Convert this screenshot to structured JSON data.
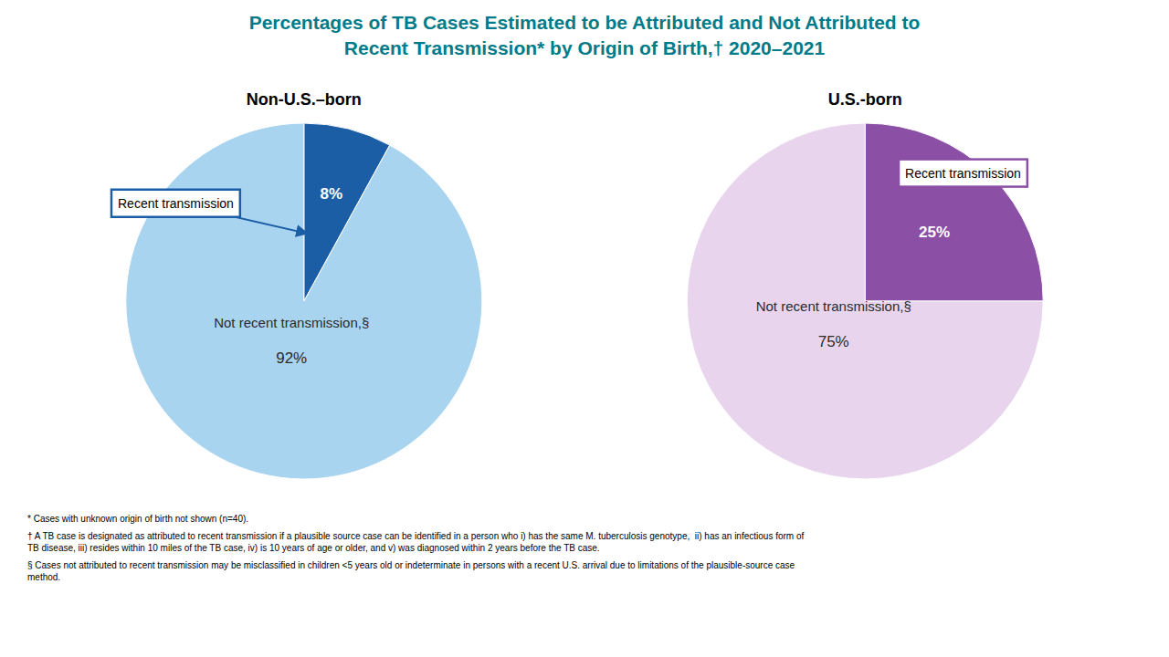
{
  "title": [
    "Percentages of TB Cases Estimated to be Attributed and Not Attributed to",
    "Recent Transmission* by Origin of Birth,† 2020–2021"
  ],
  "footnotes": [
    "* Cases with unknown origin of birth not shown (n=40).",
    "† A TB case is designated as attributed to recent transmission if a plausible source case can be identified in a person who i) has the same M. tuberculosis genotype,  ii) has an infectious form of\nTB disease, iii) resides within 10 miles of the TB case, iv) is 10 years of age or older, and v) was diagnosed within 2 years before the TB case.",
    "§ Cases not attributed to recent transmission may be misclassified in children <5 years old or indeterminate in persons with a recent U.S. arrival due to limitations of the plausible-source case\nmethod."
  ],
  "chart_data": [
    {
      "type": "pie",
      "title": "Non-U.S.–born",
      "categories": [
        "Recent transmission",
        "Not recent transmission,§"
      ],
      "values": [
        8,
        92
      ],
      "value_labels": [
        "8%",
        "92%"
      ],
      "colors": [
        "#1c5ea6",
        "#a8d4f0"
      ],
      "data_labels": true
    },
    {
      "type": "pie",
      "title": "U.S.-born",
      "categories": [
        "Recent transmission",
        "Not recent transmission,§"
      ],
      "values": [
        25,
        75
      ],
      "value_labels": [
        "25%",
        "75%"
      ],
      "colors": [
        "#8b4fa6",
        "#e8d5ed"
      ],
      "data_labels": true
    }
  ]
}
